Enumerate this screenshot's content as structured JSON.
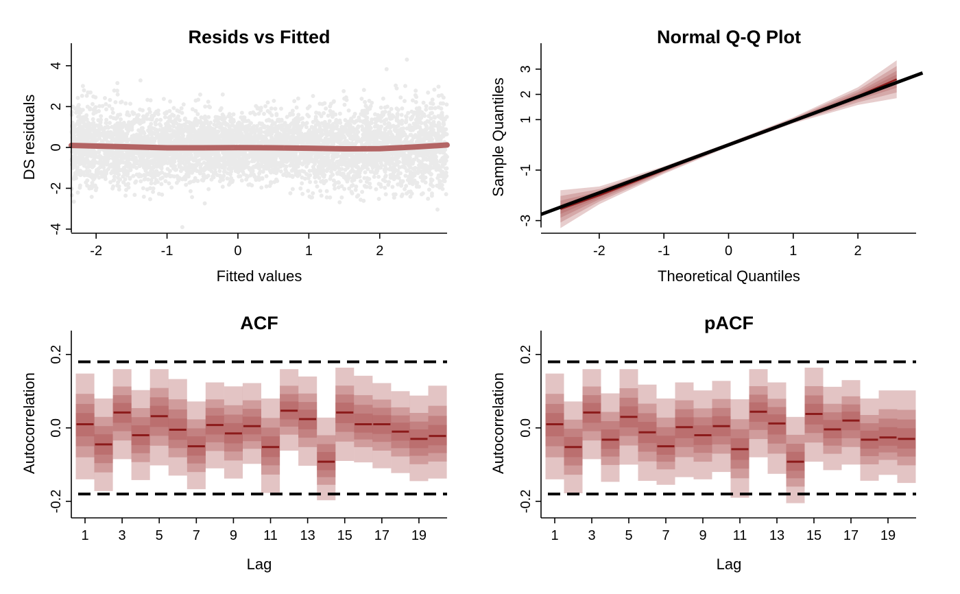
{
  "chart_data": [
    {
      "type": "scatter",
      "title": "Resids vs Fitted",
      "xlabel": "Fitted values",
      "ylabel": "DS residuals",
      "xlim": [
        -2.35,
        2.95
      ],
      "ylim": [
        -4.2,
        4.7
      ],
      "xticks": [
        -2,
        -1,
        0,
        1,
        2
      ],
      "yticks": [
        -4,
        -2,
        0,
        2,
        4
      ],
      "xtick_labels": [
        "-2",
        "-1",
        "0",
        "1",
        "2"
      ],
      "ytick_labels": [
        "-4",
        "-2",
        "0",
        "2",
        "4"
      ],
      "point_color": "#8c8c8c",
      "smooth_color": "#a94c4c",
      "smooth": {
        "x": [
          -2.35,
          -1.5,
          -1.0,
          -0.5,
          0.0,
          0.5,
          1.0,
          1.5,
          2.0,
          2.5,
          2.95
        ],
        "y": [
          0.1,
          0.02,
          -0.02,
          -0.02,
          -0.01,
          -0.02,
          -0.04,
          -0.07,
          -0.06,
          0.02,
          0.12
        ]
      }
    },
    {
      "type": "line",
      "title": "Normal Q-Q Plot",
      "xlabel": "Theoretical Quantiles",
      "ylabel": "Sample Quantiles",
      "xlim": [
        -2.9,
        2.9
      ],
      "ylim": [
        -3.5,
        3.7
      ],
      "xticks": [
        -2,
        -1,
        0,
        1,
        2
      ],
      "yticks": [
        -3,
        -1,
        1,
        2,
        3
      ],
      "xtick_labels": [
        "-2",
        "-1",
        "0",
        "1",
        "2"
      ],
      "ytick_labels": [
        "-3",
        "-1",
        "1",
        "2",
        "3"
      ],
      "reference_line": {
        "intercept": 0.0,
        "slope": 0.95
      },
      "band_x": [
        -2.6,
        -2.0,
        -1.0,
        0.0,
        1.0,
        2.0,
        2.6
      ],
      "band_median": [
        -2.55,
        -2.0,
        -1.0,
        0.0,
        0.97,
        1.93,
        2.6
      ],
      "band_width": [
        0.75,
        0.35,
        0.15,
        0.08,
        0.12,
        0.35,
        0.75
      ],
      "band_color": "#a94c4c"
    },
    {
      "type": "bar",
      "title": "ACF",
      "xlabel": "Lag",
      "ylabel": "Autocorrelation",
      "ylim": [
        -0.245,
        0.25
      ],
      "yticks": [
        -0.2,
        0.0,
        0.2
      ],
      "ytick_labels": [
        "-0.2",
        "0.0",
        "0.2"
      ],
      "xticks": [
        1,
        3,
        5,
        7,
        9,
        11,
        13,
        15,
        17,
        19
      ],
      "xtick_labels": [
        "1",
        "3",
        "5",
        "7",
        "9",
        "11",
        "13",
        "15",
        "17",
        "19"
      ],
      "lags": [
        1,
        2,
        3,
        4,
        5,
        6,
        7,
        8,
        9,
        10,
        11,
        12,
        13,
        14,
        15,
        16,
        17,
        18,
        19,
        20
      ],
      "median": [
        0.01,
        -0.045,
        0.042,
        -0.02,
        0.032,
        -0.005,
        -0.05,
        0.008,
        -0.015,
        0.005,
        -0.052,
        0.047,
        0.024,
        -0.092,
        0.042,
        0.01,
        0.01,
        -0.01,
        -0.03,
        -0.022
      ],
      "upper": [
        0.148,
        0.08,
        0.16,
        0.103,
        0.16,
        0.133,
        0.072,
        0.124,
        0.113,
        0.122,
        0.08,
        0.16,
        0.14,
        0.028,
        0.164,
        0.142,
        0.122,
        0.1,
        0.088,
        0.115
      ],
      "lower": [
        -0.14,
        -0.172,
        -0.085,
        -0.142,
        -0.102,
        -0.13,
        -0.167,
        -0.11,
        -0.138,
        -0.098,
        -0.177,
        -0.062,
        -0.103,
        -0.197,
        -0.09,
        -0.094,
        -0.11,
        -0.123,
        -0.145,
        -0.138
      ],
      "significance_bounds": [
        -0.18,
        0.18
      ],
      "band_color": "#a94c4c",
      "median_color": "#8b1a1a"
    },
    {
      "type": "bar",
      "title": "pACF",
      "xlabel": "Lag",
      "ylabel": "Autocorrelation",
      "ylim": [
        -0.245,
        0.25
      ],
      "yticks": [
        -0.2,
        0.0,
        0.2
      ],
      "ytick_labels": [
        "-0.2",
        "0.0",
        "0.2"
      ],
      "xticks": [
        1,
        3,
        5,
        7,
        9,
        11,
        13,
        15,
        17,
        19
      ],
      "xtick_labels": [
        "1",
        "3",
        "5",
        "7",
        "9",
        "11",
        "13",
        "15",
        "17",
        "19"
      ],
      "lags": [
        1,
        2,
        3,
        4,
        5,
        6,
        7,
        8,
        9,
        10,
        11,
        12,
        13,
        14,
        15,
        16,
        17,
        18,
        19,
        20
      ],
      "median": [
        0.01,
        -0.052,
        0.042,
        -0.032,
        0.03,
        -0.012,
        -0.05,
        0.002,
        -0.02,
        0.005,
        -0.058,
        0.044,
        0.012,
        -0.092,
        0.038,
        -0.004,
        0.02,
        -0.032,
        -0.026,
        -0.03
      ],
      "upper": [
        0.148,
        0.072,
        0.16,
        0.094,
        0.16,
        0.118,
        0.08,
        0.124,
        0.102,
        0.128,
        0.078,
        0.16,
        0.124,
        0.03,
        0.164,
        0.112,
        0.13,
        0.08,
        0.102,
        0.102
      ],
      "lower": [
        -0.14,
        -0.178,
        -0.085,
        -0.147,
        -0.1,
        -0.144,
        -0.155,
        -0.134,
        -0.14,
        -0.12,
        -0.19,
        -0.08,
        -0.125,
        -0.205,
        -0.092,
        -0.115,
        -0.1,
        -0.144,
        -0.128,
        -0.15
      ],
      "significance_bounds": [
        -0.18,
        0.18
      ],
      "band_color": "#a94c4c",
      "median_color": "#8b1a1a"
    }
  ]
}
